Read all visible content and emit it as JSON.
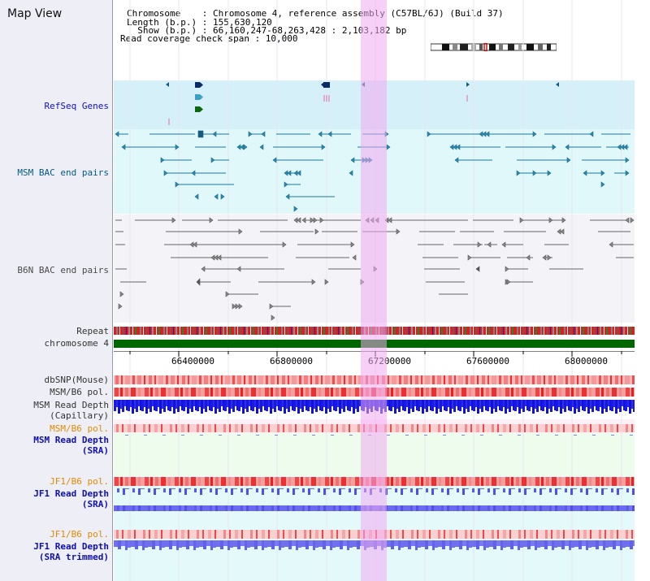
{
  "view": {
    "title": "Map View",
    "info": {
      "chromosome": "Chromosome    : Chromosome 4, reference assembly (C57BL/6J) (Build 37)",
      "length": "Length (b.p.) : 155,630,120",
      "show": "  Show (b.p.) : 66,160,247-68,263,428 : 2,103,182 bp",
      "coverage": "Read coverage check span : 10,000"
    }
  },
  "tracks": {
    "refseq": "RefSeq Genes",
    "msm_bac": "MSM BAC end pairs",
    "b6n_bac": "B6N BAC end pairs",
    "repeat": "Repeat",
    "chromosome": "chromosome 4",
    "dbsnp": "dbSNP(Mouse)",
    "msm_b6_pol": "MSM/B6 pol.",
    "msm_depth_cap_1": "MSM Read Depth",
    "msm_depth_cap_2": "(Capillary)",
    "msm_b6_pol_sra": "MSM/B6 pol.",
    "msm_depth_sra_1": "MSM Read Depth",
    "msm_depth_sra_2": "(SRA)",
    "jf1_b6_pol": "JF1/B6 pol.",
    "jf1_depth_1": "JF1 Read Depth",
    "jf1_depth_2": "(SRA)",
    "jf1_b6_pol_trim": "JF1/B6 pol.",
    "jf1_depth_trim_1": "JF1 Read Depth",
    "jf1_depth_trim_2": "(SRA trimmed)"
  },
  "ruler": {
    "ticks": [
      "66400000",
      "66800000",
      "67200000",
      "67600000",
      "68000000"
    ]
  },
  "colors": {
    "refseq_bg": "#d6f0fa",
    "msm_bac_bg": "#e0f8fa",
    "b6n_bac_bg": "#f4f4f8",
    "chromosome_bar": "#006600",
    "polymorphism_red": "#ee3333",
    "depth_blue": "#2020e8",
    "depth_light_blue": "#7777ee",
    "highlight": "#f4b4f4"
  }
}
